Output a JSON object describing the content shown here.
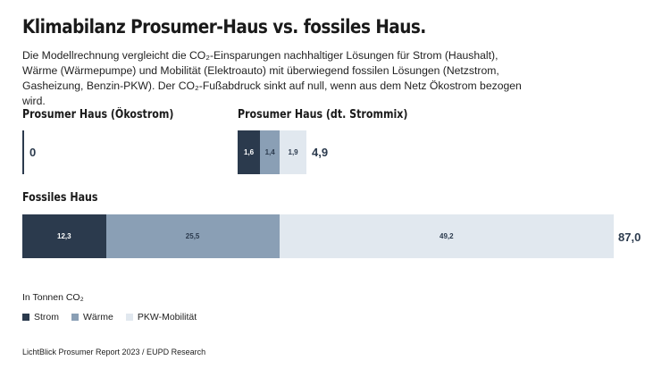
{
  "title": "Klimabilanz Prosumer-Haus vs. fossiles Haus.",
  "subtitle": "Die Modellrechnung vergleicht die CO₂-Einsparungen nachhaltiger Lösungen für Strom (Haushalt), Wärme (Wärmepumpe) und Mobilität (Elektroauto) mit überwiegend fossilen Lösungen (Netzstrom, Gasheizung, Benzin-PKW). Der CO₂-Fußabdruck sinkt auf null, wenn aus dem Netz Ökostrom bezogen wird.",
  "colors": {
    "Strom": "#2b3a4d",
    "Wärme": "#8a9fb5",
    "PKW-Mobilität": "#e1e8ef"
  },
  "chart_data": [
    {
      "type": "bar",
      "stacked": true,
      "title": "Prosumer Haus (Ökostrom)",
      "categories": [
        "Strom",
        "Wärme",
        "PKW-Mobilität"
      ],
      "values": [
        0,
        0,
        0
      ],
      "total": "0"
    },
    {
      "type": "bar",
      "stacked": true,
      "title": "Prosumer Haus (dt. Strommix)",
      "categories": [
        "Strom",
        "Wärme",
        "PKW-Mobilität"
      ],
      "values": [
        1.6,
        1.4,
        1.9
      ],
      "labels": [
        "1,6",
        "1,4",
        "1,9"
      ],
      "total": "4,9"
    },
    {
      "type": "bar",
      "stacked": true,
      "title": "Fossiles Haus",
      "categories": [
        "Strom",
        "Wärme",
        "PKW-Mobilität"
      ],
      "values": [
        12.3,
        25.5,
        49.2
      ],
      "labels": [
        "12,3",
        "25,5",
        "49,2"
      ],
      "total": "87,0"
    }
  ],
  "unit_label": "In Tonnen CO₂",
  "legend": [
    "Strom",
    "Wärme",
    "PKW-Mobilität"
  ],
  "source": "LichtBlick Prosumer Report 2023 / EUPD Research"
}
